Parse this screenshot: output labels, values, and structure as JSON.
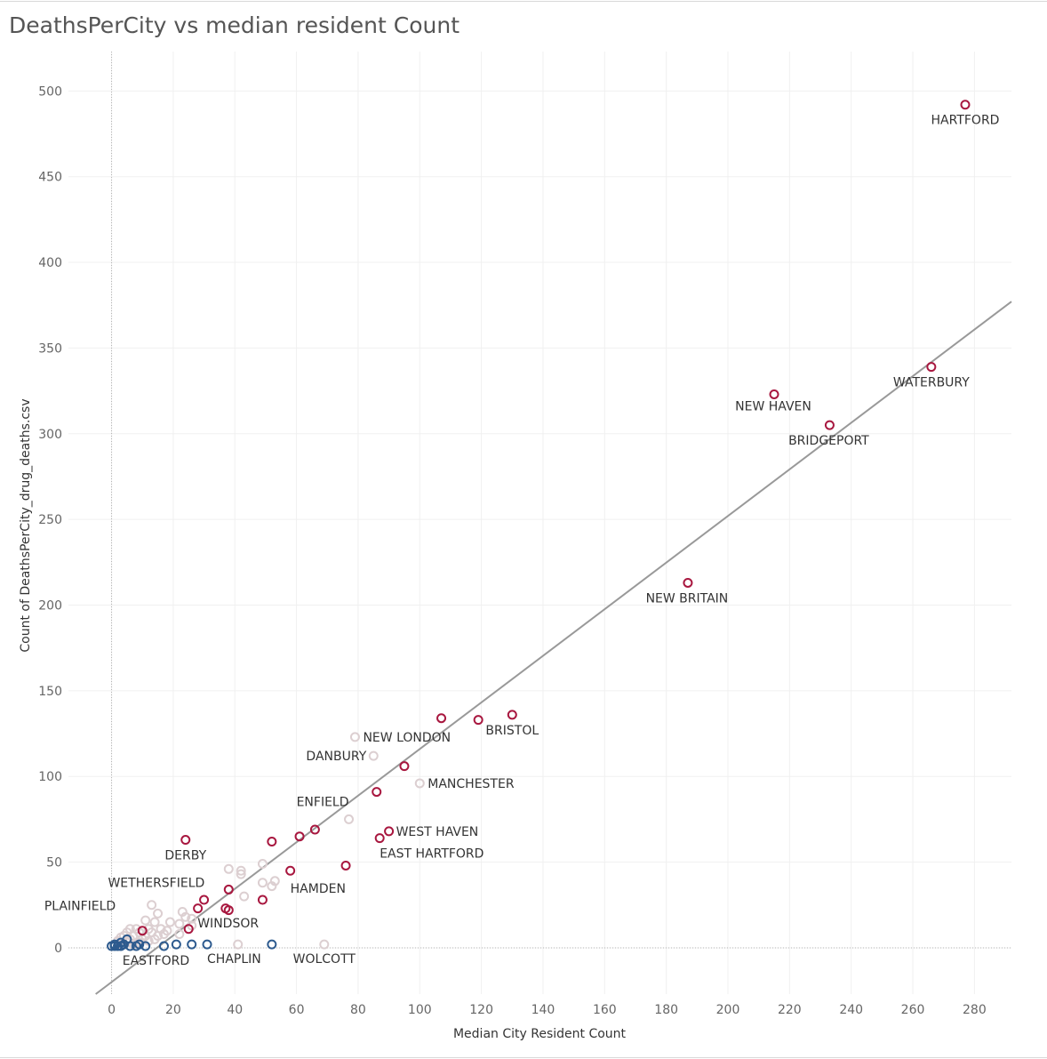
{
  "title": "DeathsPerCity vs median resident Count",
  "chart_data": {
    "type": "scatter",
    "title": "DeathsPerCity vs median resident Count",
    "xlabel": "Median City Resident Count",
    "ylabel": "Count of DeathsPerCity_drug_deaths.csv",
    "xlim": [
      -14,
      292
    ],
    "ylim": [
      -27,
      523
    ],
    "x_ticks": [
      0,
      20,
      40,
      60,
      80,
      100,
      120,
      140,
      160,
      180,
      200,
      220,
      240,
      260,
      280
    ],
    "y_ticks": [
      0,
      50,
      100,
      150,
      200,
      250,
      300,
      350,
      400,
      450,
      500
    ],
    "grid": true,
    "trend_line": {
      "slope": 1.36,
      "intercept": -20
    },
    "colors": {
      "high": "#a8173f",
      "mid": "#dccfd1",
      "low": "#2d5a8e",
      "trend": "#999999"
    },
    "series": [
      {
        "group": "high",
        "points": [
          {
            "x": 277,
            "y": 492,
            "label": "HARTFORD"
          },
          {
            "x": 266,
            "y": 339,
            "label": "WATERBURY"
          },
          {
            "x": 215,
            "y": 323,
            "label": "NEW HAVEN"
          },
          {
            "x": 233,
            "y": 305,
            "label": "BRIDGEPORT"
          },
          {
            "x": 187,
            "y": 213,
            "label": "NEW BRITAIN"
          },
          {
            "x": 130,
            "y": 136,
            "label": "BRISTOL"
          },
          {
            "x": 119,
            "y": 133
          },
          {
            "x": 107,
            "y": 134
          },
          {
            "x": 95,
            "y": 106
          },
          {
            "x": 86,
            "y": 91
          },
          {
            "x": 90,
            "y": 68,
            "label": "WEST HAVEN"
          },
          {
            "x": 87,
            "y": 64,
            "label": "EAST HARTFORD"
          },
          {
            "x": 76,
            "y": 48
          },
          {
            "x": 66,
            "y": 69
          },
          {
            "x": 61,
            "y": 65
          },
          {
            "x": 52,
            "y": 62
          },
          {
            "x": 58,
            "y": 45,
            "label": "HAMDEN"
          },
          {
            "x": 24,
            "y": 63,
            "label": "DERBY"
          },
          {
            "x": 38,
            "y": 34,
            "label": "WETHERSFIELD"
          },
          {
            "x": 49,
            "y": 28
          },
          {
            "x": 30,
            "y": 28
          },
          {
            "x": 28,
            "y": 23
          },
          {
            "x": 37,
            "y": 23
          },
          {
            "x": 38,
            "y": 22
          },
          {
            "x": 25,
            "y": 11,
            "label": "WINDSOR"
          },
          {
            "x": 10,
            "y": 10,
            "label": "PLAINFIELD"
          }
        ]
      },
      {
        "group": "mid",
        "points": [
          {
            "x": 79,
            "y": 123,
            "label": "NEW LONDON"
          },
          {
            "x": 85,
            "y": 112,
            "label": "DANBURY"
          },
          {
            "x": 100,
            "y": 96,
            "label": "MANCHESTER"
          },
          {
            "x": 77,
            "y": 75,
            "label": "ENFIELD"
          },
          {
            "x": 69,
            "y": 2,
            "label": "WOLCOTT"
          },
          {
            "x": 41,
            "y": 2
          },
          {
            "x": 38,
            "y": 46
          },
          {
            "x": 49,
            "y": 49
          },
          {
            "x": 42,
            "y": 45
          },
          {
            "x": 42,
            "y": 43
          },
          {
            "x": 53,
            "y": 39
          },
          {
            "x": 49,
            "y": 38
          },
          {
            "x": 52,
            "y": 36
          },
          {
            "x": 43,
            "y": 30
          },
          {
            "x": 13,
            "y": 25
          },
          {
            "x": 15,
            "y": 20
          },
          {
            "x": 23,
            "y": 21
          },
          {
            "x": 24,
            "y": 18
          },
          {
            "x": 26,
            "y": 17
          },
          {
            "x": 11,
            "y": 16
          },
          {
            "x": 14,
            "y": 15
          },
          {
            "x": 19,
            "y": 15
          },
          {
            "x": 22,
            "y": 14
          },
          {
            "x": 26,
            "y": 13
          },
          {
            "x": 6,
            "y": 11
          },
          {
            "x": 8,
            "y": 11
          },
          {
            "x": 12,
            "y": 11
          },
          {
            "x": 16,
            "y": 11
          },
          {
            "x": 18,
            "y": 10
          },
          {
            "x": 5,
            "y": 9
          },
          {
            "x": 9,
            "y": 9
          },
          {
            "x": 13,
            "y": 9
          },
          {
            "x": 17,
            "y": 8
          },
          {
            "x": 22,
            "y": 8
          },
          {
            "x": 4,
            "y": 7
          },
          {
            "x": 7,
            "y": 7
          },
          {
            "x": 11,
            "y": 7
          },
          {
            "x": 15,
            "y": 7
          },
          {
            "x": 3,
            "y": 6
          },
          {
            "x": 6,
            "y": 5
          },
          {
            "x": 10,
            "y": 5
          },
          {
            "x": 14,
            "y": 5
          },
          {
            "x": 2,
            "y": 4
          },
          {
            "x": 5,
            "y": 3
          },
          {
            "x": 9,
            "y": 3
          },
          {
            "x": 12,
            "y": 4
          },
          {
            "x": 3,
            "y": 2
          },
          {
            "x": 7,
            "y": 2
          }
        ]
      },
      {
        "group": "low",
        "points": [
          {
            "x": 17,
            "y": 1,
            "label": "EASTFORD"
          },
          {
            "x": 31,
            "y": 2,
            "label": "CHAPLIN"
          },
          {
            "x": 52,
            "y": 2
          },
          {
            "x": 26,
            "y": 2
          },
          {
            "x": 21,
            "y": 2
          },
          {
            "x": 11,
            "y": 1
          },
          {
            "x": 9,
            "y": 2
          },
          {
            "x": 5,
            "y": 5
          },
          {
            "x": 4,
            "y": 2
          },
          {
            "x": 3,
            "y": 3
          },
          {
            "x": 2,
            "y": 1
          },
          {
            "x": 1,
            "y": 1
          },
          {
            "x": 1,
            "y": 2
          },
          {
            "x": 0,
            "y": 1
          },
          {
            "x": 6,
            "y": 1
          },
          {
            "x": 8,
            "y": 1
          },
          {
            "x": 3,
            "y": 1
          }
        ]
      }
    ]
  }
}
